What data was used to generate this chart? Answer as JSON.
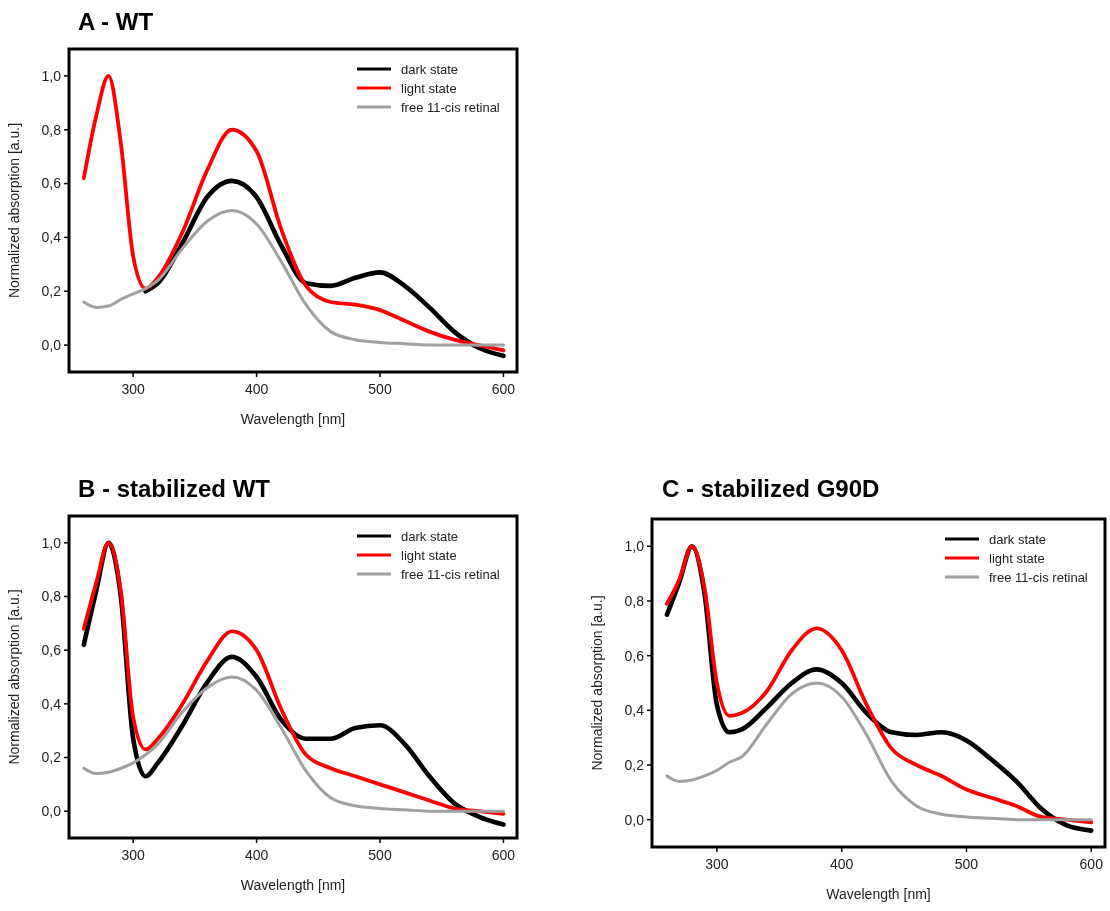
{
  "chart_data": [
    {
      "type": "line",
      "title": "A - WT",
      "xlabel": "Wavelength [nm]",
      "ylabel": "Normalized absorption [a.u.]",
      "x": [
        260,
        270,
        280,
        290,
        300,
        310,
        320,
        340,
        360,
        380,
        400,
        420,
        440,
        460,
        480,
        500,
        520,
        540,
        560,
        580,
        600
      ],
      "xlim": [
        248,
        611
      ],
      "ylim": [
        -0.1,
        1.1
      ],
      "xticks": [
        300,
        400,
        500,
        600
      ],
      "yticks": [
        {
          "value": 0,
          "label": "0,0"
        },
        {
          "value": 0.2,
          "label": "0,2"
        },
        {
          "value": 0.4,
          "label": "0,4"
        },
        {
          "value": 0.6,
          "label": "0,6"
        },
        {
          "value": 0.8,
          "label": "0,8"
        },
        {
          "value": 1,
          "label": "1,0"
        }
      ],
      "legend": "top right",
      "marker": "none",
      "line_style": "solid",
      "series": [
        {
          "name": "dark state",
          "color": "#000000",
          "values": [
            null,
            null,
            null,
            null,
            null,
            0.2,
            0.23,
            0.38,
            0.55,
            0.61,
            0.55,
            0.37,
            0.23,
            0.22,
            0.25,
            0.27,
            0.22,
            0.14,
            0.05,
            -0.01,
            -0.04
          ]
        },
        {
          "name": "light state",
          "color": "#ff0000",
          "values": [
            0.62,
            0.85,
            1.0,
            0.75,
            0.33,
            0.21,
            0.25,
            0.42,
            0.65,
            0.8,
            0.72,
            0.43,
            0.22,
            0.16,
            0.15,
            0.13,
            0.09,
            0.05,
            0.02,
            0.0,
            -0.02
          ]
        },
        {
          "name": "free 11-cis retinal",
          "color": "#a0a0a0",
          "values": [
            0.16,
            0.14,
            0.145,
            0.17,
            0.19,
            0.21,
            0.24,
            0.36,
            0.46,
            0.5,
            0.45,
            0.31,
            0.15,
            0.05,
            0.02,
            0.01,
            0.005,
            0.0,
            0.0,
            0.0,
            0.0
          ]
        }
      ]
    },
    {
      "type": "line",
      "title": "B - stabilized WT",
      "xlabel": "Wavelength [nm]",
      "ylabel": "Normalized absorption [a.u.]",
      "x": [
        260,
        270,
        280,
        290,
        300,
        310,
        320,
        340,
        360,
        380,
        400,
        420,
        440,
        460,
        480,
        500,
        520,
        540,
        560,
        580,
        600
      ],
      "xlim": [
        248,
        611
      ],
      "ylim": [
        -0.1,
        1.1
      ],
      "xticks": [
        300,
        400,
        500,
        600
      ],
      "yticks": [
        {
          "value": 0,
          "label": "0,0"
        },
        {
          "value": 0.2,
          "label": "0,2"
        },
        {
          "value": 0.4,
          "label": "0,4"
        },
        {
          "value": 0.6,
          "label": "0,6"
        },
        {
          "value": 0.8,
          "label": "0,8"
        },
        {
          "value": 1,
          "label": "1,0"
        }
      ],
      "legend": "top right",
      "marker": "none",
      "line_style": "solid",
      "series": [
        {
          "name": "dark state",
          "color": "#000000",
          "values": [
            0.62,
            0.82,
            1.0,
            0.8,
            0.27,
            0.13,
            0.18,
            0.32,
            0.48,
            0.575,
            0.5,
            0.34,
            0.27,
            0.27,
            0.31,
            0.32,
            0.25,
            0.13,
            0.03,
            -0.02,
            -0.05
          ]
        },
        {
          "name": "light state",
          "color": "#ff0000",
          "values": [
            0.68,
            0.85,
            1.0,
            0.82,
            0.35,
            0.23,
            0.27,
            0.4,
            0.56,
            0.67,
            0.6,
            0.38,
            0.21,
            0.16,
            0.13,
            0.1,
            0.07,
            0.04,
            0.01,
            0.0,
            -0.01
          ]
        },
        {
          "name": "free 11-cis retinal",
          "color": "#a0a0a0",
          "values": [
            0.16,
            0.14,
            0.145,
            0.16,
            0.18,
            0.21,
            0.25,
            0.37,
            0.46,
            0.5,
            0.45,
            0.31,
            0.15,
            0.05,
            0.02,
            0.01,
            0.005,
            0.0,
            0.0,
            0.0,
            0.0
          ]
        }
      ]
    },
    {
      "type": "line",
      "title": "C - stabilized G90D",
      "xlabel": "Wavelength [nm]",
      "ylabel": "Normalized absorption [a.u.]",
      "x": [
        260,
        270,
        280,
        290,
        300,
        310,
        320,
        340,
        360,
        380,
        400,
        420,
        440,
        460,
        480,
        500,
        520,
        540,
        560,
        580,
        600
      ],
      "xlim": [
        248,
        611
      ],
      "ylim": [
        -0.1,
        1.1
      ],
      "xticks": [
        300,
        400,
        500,
        600
      ],
      "yticks": [
        {
          "value": 0,
          "label": "0,0"
        },
        {
          "value": 0.2,
          "label": "0,2"
        },
        {
          "value": 0.4,
          "label": "0,4"
        },
        {
          "value": 0.6,
          "label": "0,6"
        },
        {
          "value": 0.8,
          "label": "0,8"
        },
        {
          "value": 1,
          "label": "1,0"
        }
      ],
      "legend": "top right",
      "marker": "none",
      "line_style": "solid",
      "series": [
        {
          "name": "dark state",
          "color": "#000000",
          "values": [
            0.75,
            0.87,
            1.0,
            0.83,
            0.42,
            0.32,
            0.33,
            0.41,
            0.5,
            0.55,
            0.5,
            0.39,
            0.32,
            0.31,
            0.32,
            0.29,
            0.22,
            0.14,
            0.04,
            -0.02,
            -0.04
          ]
        },
        {
          "name": "light state",
          "color": "#ff0000",
          "values": [
            0.79,
            0.88,
            1.0,
            0.85,
            0.5,
            0.38,
            0.39,
            0.47,
            0.62,
            0.7,
            0.62,
            0.42,
            0.26,
            0.2,
            0.16,
            0.11,
            0.08,
            0.05,
            0.01,
            0.0,
            -0.01
          ]
        },
        {
          "name": "free 11-cis retinal",
          "color": "#a0a0a0",
          "values": [
            0.16,
            0.14,
            0.145,
            0.16,
            0.18,
            0.21,
            0.23,
            0.35,
            0.46,
            0.5,
            0.45,
            0.31,
            0.14,
            0.05,
            0.02,
            0.01,
            0.005,
            0.0,
            0.0,
            0.0,
            0.0
          ]
        }
      ]
    }
  ]
}
